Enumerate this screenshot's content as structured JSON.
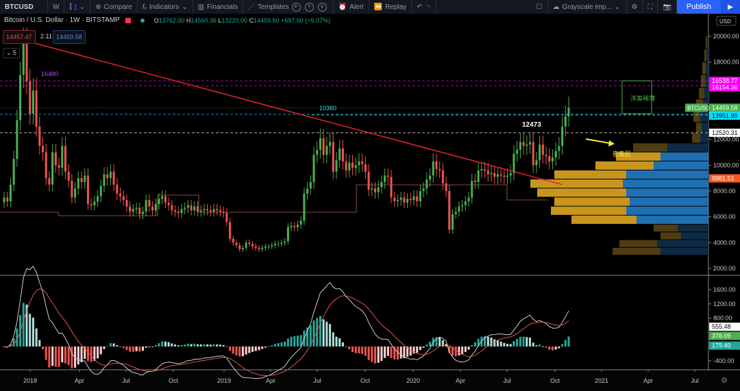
{
  "toolbar": {
    "symbol": "BTCUSD",
    "interval": "W",
    "compare": "Compare",
    "indicators": "Indicators",
    "financials": "Financials",
    "templates": "Templates",
    "circles": [
      "F",
      "T",
      "V"
    ],
    "alert": "Alert",
    "replay": "Replay",
    "layout_name": "Grayscale imp...",
    "publish": "Publish"
  },
  "legend": {
    "title": "Bitcoin / U.S. Dollar · 1W · BITSTAMP",
    "o_label": "O",
    "o": "13762.00",
    "h_label": "H",
    "h": "14560.36",
    "l_label": "L",
    "l": "13220.00",
    "c_label": "C",
    "c": "14459.50",
    "change": "+697.50 (+5.07%)"
  },
  "trade": {
    "sell": "14457.47",
    "spread": "2.11",
    "buy": "14459.58",
    "collapse": "⌄ 5"
  },
  "colors": {
    "up": "#4caf50",
    "down": "#ef5350",
    "trendline": "#e8232a",
    "vp_up": "#c8951f",
    "vp_down": "#1f6fb2",
    "vp_up_dim": "#4e3d12",
    "vp_down_dim": "#0f2a45",
    "magenta": "#ff00ff",
    "cyan": "#00e5ff",
    "orange": "#ff5722",
    "green_label": "#4caf50"
  },
  "chart_data": [
    {
      "type": "candlestick",
      "title": "Bitcoin / U.S. Dollar 1W BITSTAMP",
      "ylabel": "USD",
      "ylim": [
        1500,
        21000
      ],
      "y_ticks": [
        2000,
        4000,
        6000,
        8000,
        10000,
        12000,
        18000,
        20000
      ],
      "x_ticks": [
        "2018",
        "Apr",
        "Jul",
        "Oct",
        "2019",
        "Apr",
        "Jul",
        "Oct",
        "2020",
        "Apr",
        "Jul",
        "Oct",
        "2021",
        "Apr",
        "Jul"
      ],
      "series_close": [
        7500,
        7200,
        8500,
        10500,
        13500,
        17000,
        19500,
        16500,
        14000,
        15800,
        13000,
        11500,
        11000,
        9000,
        8500,
        11000,
        10000,
        9800,
        11500,
        9500,
        8800,
        7500,
        8200,
        9000,
        8700,
        9200,
        7000,
        6900,
        7200,
        7600,
        8400,
        9300,
        9000,
        9500,
        8500,
        7800,
        7600,
        7300,
        6800,
        6400,
        6600,
        6700,
        6200,
        6400,
        7300,
        6800,
        6500,
        7000,
        7400,
        7600,
        7100,
        6900,
        6500,
        6400,
        6300,
        6600,
        6700,
        6900,
        6500,
        6800,
        6400,
        6500,
        6600,
        6500,
        6400,
        6600,
        6500,
        6400,
        6300,
        5600,
        4300,
        4000,
        3800,
        3500,
        3600,
        4000,
        3900,
        3700,
        3600,
        3500,
        3600,
        3700,
        3700,
        3800,
        3900,
        3900,
        4000,
        4100,
        5200,
        5300,
        5200,
        5400,
        5700,
        7800,
        8200,
        8700,
        10800,
        11200,
        12100,
        10800,
        11500,
        11800,
        9500,
        10400,
        11300,
        10300,
        9600,
        10200,
        9800,
        10000,
        10300,
        10100,
        9500,
        8100,
        8200,
        7900,
        8300,
        8700,
        9200,
        9100,
        7500,
        7200,
        7300,
        7500,
        7100,
        7400,
        7300,
        7600,
        7200,
        8000,
        8200,
        8900,
        9200,
        10300,
        9700,
        9600,
        8600,
        8000,
        5000,
        6200,
        6400,
        6800,
        6900,
        7200,
        7500,
        8800,
        8700,
        9600,
        9700,
        9600,
        9300,
        9400,
        9100,
        9300,
        9200,
        9100,
        9200,
        9400,
        10900,
        11200,
        11800,
        11500,
        11600,
        11800,
        10000,
        10400,
        11600,
        10800,
        10700,
        10300,
        10600,
        11100,
        11500,
        13000,
        13800,
        14459
      ],
      "trendline": {
        "from": {
          "x_idx": 6,
          "price": 19700
        },
        "to": {
          "x_idx": 173,
          "price": 8500
        },
        "color": "#e8232a"
      },
      "annotations": [
        {
          "text": "16480",
          "color": "#c040ff"
        },
        {
          "text": "10380",
          "color": "#4dd0e1"
        },
        {
          "text": "12473",
          "color": "#ffffff"
        },
        {
          "text": "浮筹稀薄",
          "color": "#4caf50"
        },
        {
          "text": "密集区",
          "color": "#ffeb3b"
        }
      ],
      "horizontal_levels": [
        {
          "price": 16538.77,
          "label": "16538.77",
          "color": "#ff00ff",
          "style": "dashed"
        },
        {
          "price": 16154.36,
          "label": "16154.36",
          "color": "#ff00ff",
          "style": "dashed"
        },
        {
          "price": 14459.58,
          "label": "14459.58",
          "color": "#4caf50",
          "style": "dotted"
        },
        {
          "price": 13951.9,
          "label": "13951.90",
          "color": "#00e5ff",
          "style": "dashed"
        },
        {
          "price": 12520.31,
          "label": "12520.31",
          "color": "#ffffff",
          "style": "dashed"
        },
        {
          "price": 8981.51,
          "label": "8981.51",
          "color": "#ff5722",
          "style": "solid"
        }
      ],
      "volume_profile": [
        {
          "lo": 3000,
          "hi": 3600,
          "up": 70,
          "down": 70,
          "dim": true
        },
        {
          "lo": 3600,
          "hi": 4200,
          "up": 55,
          "down": 75,
          "dim": true
        },
        {
          "lo": 4200,
          "hi": 4800,
          "up": 30,
          "down": 40,
          "dim": true
        },
        {
          "lo": 4800,
          "hi": 5400,
          "up": 35,
          "down": 45,
          "dim": true
        },
        {
          "lo": 5400,
          "hi": 6100,
          "up": 95,
          "down": 105,
          "dim": false
        },
        {
          "lo": 6100,
          "hi": 6800,
          "up": 110,
          "down": 120,
          "dim": false
        },
        {
          "lo": 6800,
          "hi": 7500,
          "up": 110,
          "down": 115,
          "dim": false
        },
        {
          "lo": 7500,
          "hi": 8200,
          "up": 130,
          "down": 120,
          "dim": false
        },
        {
          "lo": 8200,
          "hi": 8900,
          "up": 135,
          "down": 125,
          "dim": false
        },
        {
          "lo": 8900,
          "hi": 9600,
          "up": 105,
          "down": 120,
          "dim": false
        },
        {
          "lo": 9600,
          "hi": 10300,
          "up": 85,
          "down": 80,
          "dim": false
        },
        {
          "lo": 10300,
          "hi": 11000,
          "up": 65,
          "down": 70,
          "dim": false
        },
        {
          "lo": 11000,
          "hi": 11700,
          "up": 50,
          "down": 60,
          "dim": true
        },
        {
          "lo": 11700,
          "hi": 12500,
          "up": 12,
          "down": 12,
          "dim": true
        },
        {
          "lo": 12500,
          "hi": 13300,
          "up": 8,
          "down": 10,
          "dim": true
        },
        {
          "lo": 13300,
          "hi": 14200,
          "up": 10,
          "down": 12,
          "dim": true
        },
        {
          "lo": 14200,
          "hi": 15100,
          "up": 10,
          "down": 8,
          "dim": true
        },
        {
          "lo": 15100,
          "hi": 16000,
          "up": 8,
          "down": 6,
          "dim": true
        },
        {
          "lo": 16000,
          "hi": 17000,
          "up": 6,
          "down": 5,
          "dim": true
        },
        {
          "lo": 17000,
          "hi": 18000,
          "up": 5,
          "down": 4,
          "dim": true
        },
        {
          "lo": 18000,
          "hi": 19000,
          "up": 3,
          "down": 3,
          "dim": true
        },
        {
          "lo": 19000,
          "hi": 20000,
          "up": 2,
          "down": 2,
          "dim": true
        }
      ]
    },
    {
      "type": "macd",
      "ylim": [
        -600,
        1900
      ],
      "y_ticks": [
        1600,
        1200,
        800,
        0,
        -400
      ],
      "last_values": {
        "macd": "555.48",
        "signal": "376.09",
        "histogram": "179.40"
      }
    }
  ],
  "axis": {
    "price_ticks": [
      "20000.00",
      "18000.00",
      "12000.00",
      "10000.00",
      "8000.00",
      "6000.00",
      "4000.00",
      "2000.00"
    ],
    "macd_ticks": [
      "1600.00",
      "1200.00",
      "800.00",
      "0.00",
      "-400.00"
    ],
    "time_ticks": [
      "2018",
      "Apr",
      "Jul",
      "Oct",
      "2019",
      "Apr",
      "Jul",
      "Oct",
      "2020",
      "Apr",
      "Jul",
      "Oct",
      "2021",
      "Apr",
      "Jul"
    ],
    "currency": "USD",
    "symbol_tag": "BTCUSD"
  }
}
